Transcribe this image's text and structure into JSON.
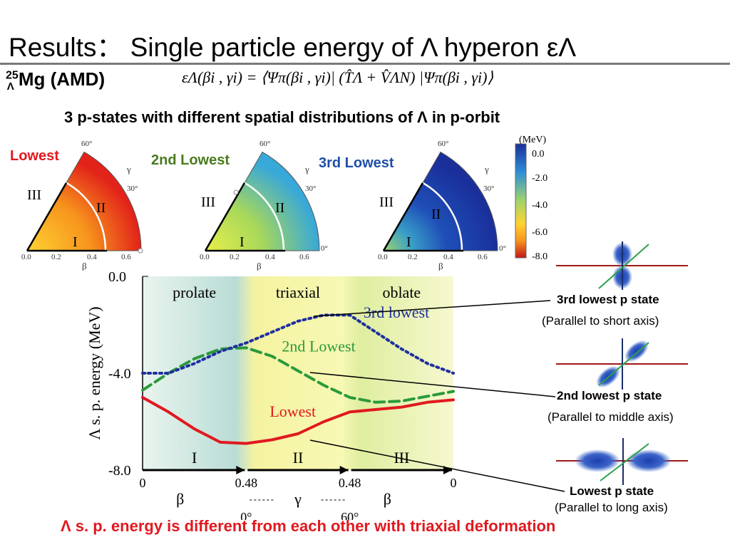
{
  "slide": {
    "title": "Results： Single particle energy of Λ hyperon εΛ",
    "nucleus": {
      "mass": "25",
      "sub": "Λ",
      "name": "Mg (AMD)"
    },
    "formula": "εΛ(βi , γi) = ⟨Ψπ(βi , γi)| (T̂Λ + V̂ΛN) |Ψπ(βi , γi)⟩",
    "subtitle": "3 p-states with different spatial distributions of Λ in p-orbit",
    "bottom_note": "Λ s. p. energy is different from each other with triaxial deformation"
  },
  "maps": {
    "labels": [
      "Lowest",
      "2nd Lowest",
      "3rd Lowest"
    ],
    "label_colors": [
      "#e0191f",
      "#4a7a1e",
      "#1f4ea8"
    ],
    "region_labels": [
      "I",
      "II",
      "III"
    ],
    "angle_labels": [
      "60°",
      "30°",
      "0°"
    ],
    "gamma_label": "γ",
    "beta_label": "β",
    "beta_ticks": [
      "0.0",
      "0.2",
      "0.4",
      "0.6"
    ],
    "colorbar": {
      "unit": "(MeV)",
      "ticks": [
        "0.0",
        "-2.0",
        "-4.0",
        "-6.0",
        "-8.0"
      ]
    }
  },
  "chart_data": {
    "type": "line",
    "ylabel": "Λ s. p. energy (MeV)",
    "ylim": [
      -8.0,
      0.0
    ],
    "yticks": [
      "0.0",
      "-4.0",
      "-8.0"
    ],
    "path_segments": [
      {
        "label": "I",
        "axis": "β",
        "from": "0",
        "to": "0.48"
      },
      {
        "label": "II",
        "axis": "γ",
        "from": "0°",
        "to": "60°"
      },
      {
        "label": "III",
        "axis": "β",
        "from": "0.48",
        "to": "0"
      }
    ],
    "x_tick_labels": [
      "0",
      "0.48",
      "0.48",
      "0"
    ],
    "gamma_tick_labels": [
      "0°",
      "60°"
    ],
    "regions": [
      "prolate",
      "triaxial",
      "oblate"
    ],
    "x": [
      0.0,
      0.25,
      0.5,
      0.75,
      1.0,
      1.25,
      1.5,
      1.75,
      2.0,
      2.25,
      2.5,
      2.75,
      3.0
    ],
    "series": [
      {
        "name": "Lowest",
        "color": "#e0191f",
        "style": "solid",
        "values": [
          -5.0,
          -5.6,
          -6.3,
          -6.85,
          -6.9,
          -6.75,
          -6.5,
          -6.0,
          -5.6,
          -5.5,
          -5.4,
          -5.2,
          -5.1
        ]
      },
      {
        "name": "2nd Lowest",
        "color": "#2a9a3a",
        "style": "dashed",
        "values": [
          -4.7,
          -4.0,
          -3.4,
          -3.0,
          -2.95,
          -3.3,
          -3.9,
          -4.5,
          -5.0,
          -5.2,
          -5.15,
          -4.95,
          -4.75
        ]
      },
      {
        "name": "3rd lowest",
        "color": "#1f2f9f",
        "style": "dotted",
        "values": [
          -4.0,
          -4.0,
          -3.6,
          -3.1,
          -2.75,
          -2.3,
          -1.85,
          -1.6,
          -1.6,
          -2.3,
          -3.0,
          -3.6,
          -4.0
        ]
      }
    ]
  },
  "states": [
    {
      "label": "3rd lowest p state",
      "desc": "(Parallel to short axis)"
    },
    {
      "label": "2nd lowest p state",
      "desc": "(Parallel to middle axis)"
    },
    {
      "label": "Lowest p state",
      "desc": "(Parallel to long axis)"
    }
  ]
}
